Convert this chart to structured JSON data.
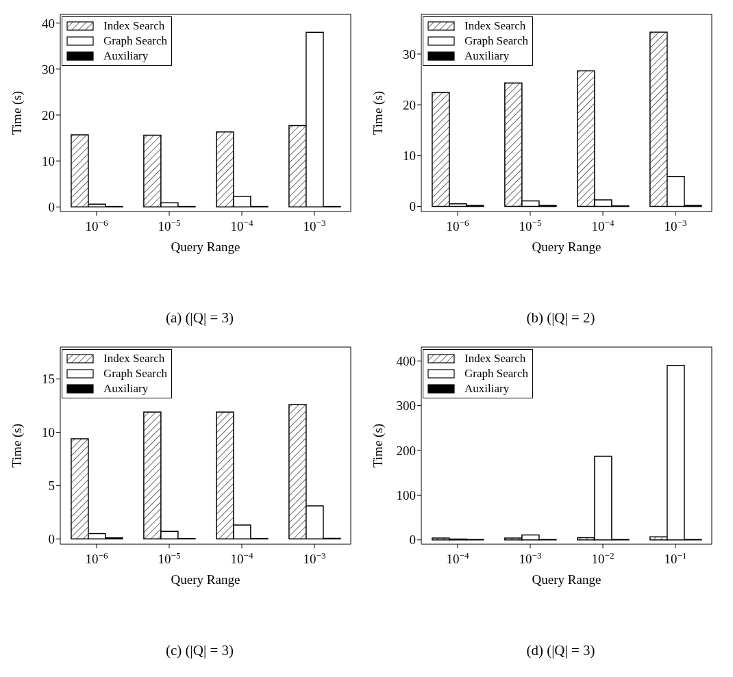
{
  "chart_data": [
    {
      "type": "bar",
      "title": "(a) (|Q| = 3)",
      "xlabel": "Query Range",
      "ylabel": "Time (s)",
      "categories": [
        "10$^{−6}$",
        "10$^{−5}$",
        "10$^{−4}$",
        "10$^{−3}$"
      ],
      "ylim": [
        -1,
        41.9
      ],
      "yticks": [
        0,
        10,
        20,
        30,
        40
      ],
      "legend": "top left",
      "series": [
        {
          "name": "Index Search",
          "color": "#000000",
          "values": [
            15.7,
            15.6,
            16.3,
            17.7
          ]
        },
        {
          "name": "Graph Search",
          "color": "#ffffff",
          "values": [
            0.6,
            0.9,
            2.3,
            38.0
          ]
        },
        {
          "name": "Auxiliary",
          "color": "#000000",
          "values": [
            0.1,
            0.1,
            0.1,
            0.1
          ]
        }
      ]
    },
    {
      "type": "bar",
      "title": "(b) (|Q| = 2)",
      "xlabel": "Query Range",
      "ylabel": "Time (s)",
      "categories": [
        "10$^{−6}$",
        "10$^{−5}$",
        "10$^{−4}$",
        "10$^{−3}$"
      ],
      "ylim": [
        -1,
        37.8
      ],
      "yticks": [
        0,
        10,
        20,
        30
      ],
      "legend": "top left",
      "series": [
        {
          "name": "Index Search",
          "color": "#000000",
          "values": [
            22.4,
            24.3,
            26.7,
            34.3
          ]
        },
        {
          "name": "Graph Search",
          "color": "#ffffff",
          "values": [
            0.5,
            1.1,
            1.3,
            5.9
          ]
        },
        {
          "name": "Auxiliary",
          "color": "#000000",
          "values": [
            0.2,
            0.2,
            0.1,
            0.2
          ]
        }
      ]
    },
    {
      "type": "bar",
      "title": "(c) (|Q| = 3)",
      "xlabel": "Query Range",
      "ylabel": "Time (s)",
      "categories": [
        "10$^{−6}$",
        "10$^{−5}$",
        "10$^{−4}$",
        "10$^{−3}$"
      ],
      "ylim": [
        -0.5,
        18
      ],
      "yticks": [
        0,
        5,
        10,
        15
      ],
      "legend": "top left",
      "series": [
        {
          "name": "Index Search",
          "color": "#000000",
          "values": [
            9.4,
            11.9,
            11.9,
            12.6
          ]
        },
        {
          "name": "Graph Search",
          "color": "#ffffff",
          "values": [
            0.5,
            0.7,
            1.3,
            3.1
          ]
        },
        {
          "name": "Auxiliary",
          "color": "#000000",
          "values": [
            0.1,
            0.03,
            0.03,
            0.05
          ]
        }
      ]
    },
    {
      "type": "bar",
      "title": "(d) (|Q| = 3)",
      "xlabel": "Query Range",
      "ylabel": "Time (s)",
      "categories": [
        "10$^{−4}$",
        "10$^{−3}$",
        "10$^{−2}$",
        "10$^{−1}$"
      ],
      "ylim": [
        -9.6,
        431
      ],
      "yticks": [
        0,
        100,
        200,
        300,
        400
      ],
      "legend": "top left",
      "series": [
        {
          "name": "Index Search",
          "color": "#000000",
          "values": [
            4,
            4,
            5,
            7
          ]
        },
        {
          "name": "Graph Search",
          "color": "#ffffff",
          "values": [
            2,
            11,
            187,
            390
          ]
        },
        {
          "name": "Auxiliary",
          "color": "#000000",
          "values": [
            1,
            1,
            1,
            1
          ]
        }
      ]
    }
  ]
}
